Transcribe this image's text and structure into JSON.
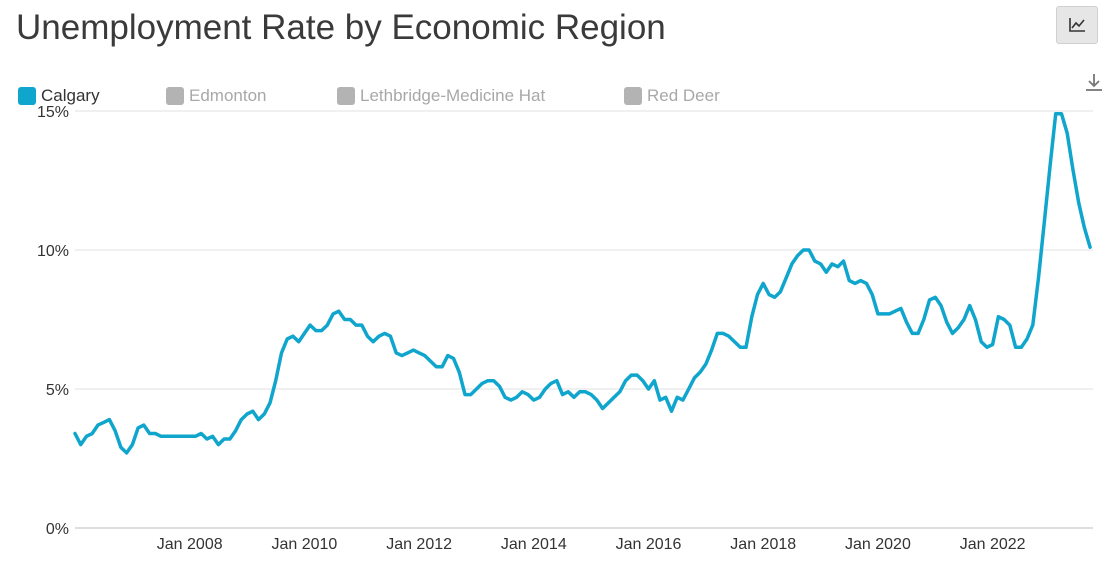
{
  "title": "Unemployment Rate by Economic Region",
  "toolbar": {
    "chart_type_icon": "line-chart-icon",
    "download_icon": "download-icon"
  },
  "legend": [
    {
      "label": "Calgary",
      "active": true,
      "color": "#0fa5cd"
    },
    {
      "label": "Edmonton",
      "active": false,
      "color": "#b3b3b3"
    },
    {
      "label": "Lethbridge-Medicine Hat",
      "active": false,
      "color": "#b3b3b3"
    },
    {
      "label": "Red Deer",
      "active": false,
      "color": "#b3b3b3"
    }
  ],
  "colors": {
    "series": "#0fa5cd",
    "inactive": "#b3b3b3",
    "grid": "#e0e0e0",
    "axis_text": "#333333"
  },
  "chart_data": {
    "type": "line",
    "title": "Unemployment Rate by Economic Region",
    "xlabel": "",
    "ylabel": "",
    "ylim": [
      0,
      15
    ],
    "yticks": [
      0,
      5,
      10,
      15
    ],
    "ytick_labels": [
      "0%",
      "5%",
      "10%",
      "15%"
    ],
    "xlim": [
      2006.0,
      2023.75
    ],
    "xticks": [
      2008,
      2010,
      2012,
      2014,
      2016,
      2018,
      2020,
      2022
    ],
    "xtick_labels": [
      "Jan 2008",
      "Jan 2010",
      "Jan 2012",
      "Jan 2014",
      "Jan 2016",
      "Jan 2018",
      "Jan 2020",
      "Jan 2022"
    ],
    "grid": "horizontal",
    "legend_position": "top-left",
    "series": [
      {
        "name": "Calgary",
        "points": [
          [
            2006.0,
            3.4
          ],
          [
            2006.1,
            3.0
          ],
          [
            2006.2,
            3.3
          ],
          [
            2006.3,
            3.4
          ],
          [
            2006.4,
            3.7
          ],
          [
            2006.5,
            3.8
          ],
          [
            2006.6,
            3.9
          ],
          [
            2006.7,
            3.5
          ],
          [
            2006.8,
            2.9
          ],
          [
            2006.9,
            2.7
          ],
          [
            2007.0,
            3.0
          ],
          [
            2007.1,
            3.6
          ],
          [
            2007.2,
            3.7
          ],
          [
            2007.3,
            3.4
          ],
          [
            2007.4,
            3.4
          ],
          [
            2007.5,
            3.3
          ],
          [
            2007.6,
            3.3
          ],
          [
            2007.8,
            3.3
          ],
          [
            2008.0,
            3.3
          ],
          [
            2008.1,
            3.3
          ],
          [
            2008.2,
            3.4
          ],
          [
            2008.3,
            3.2
          ],
          [
            2008.4,
            3.3
          ],
          [
            2008.5,
            3.0
          ],
          [
            2008.6,
            3.2
          ],
          [
            2008.7,
            3.2
          ],
          [
            2008.8,
            3.5
          ],
          [
            2008.9,
            3.9
          ],
          [
            2009.0,
            4.1
          ],
          [
            2009.1,
            4.2
          ],
          [
            2009.2,
            3.9
          ],
          [
            2009.3,
            4.1
          ],
          [
            2009.4,
            4.5
          ],
          [
            2009.5,
            5.3
          ],
          [
            2009.6,
            6.3
          ],
          [
            2009.7,
            6.8
          ],
          [
            2009.8,
            6.9
          ],
          [
            2009.9,
            6.7
          ],
          [
            2010.0,
            7.0
          ],
          [
            2010.1,
            7.3
          ],
          [
            2010.2,
            7.1
          ],
          [
            2010.3,
            7.1
          ],
          [
            2010.4,
            7.3
          ],
          [
            2010.5,
            7.7
          ],
          [
            2010.6,
            7.8
          ],
          [
            2010.7,
            7.5
          ],
          [
            2010.8,
            7.5
          ],
          [
            2010.9,
            7.3
          ],
          [
            2011.0,
            7.3
          ],
          [
            2011.1,
            6.9
          ],
          [
            2011.2,
            6.7
          ],
          [
            2011.3,
            6.9
          ],
          [
            2011.4,
            7.0
          ],
          [
            2011.5,
            6.9
          ],
          [
            2011.6,
            6.3
          ],
          [
            2011.7,
            6.2
          ],
          [
            2011.8,
            6.3
          ],
          [
            2011.9,
            6.4
          ],
          [
            2012.0,
            6.3
          ],
          [
            2012.1,
            6.2
          ],
          [
            2012.2,
            6.0
          ],
          [
            2012.3,
            5.8
          ],
          [
            2012.4,
            5.8
          ],
          [
            2012.5,
            6.2
          ],
          [
            2012.6,
            6.1
          ],
          [
            2012.7,
            5.6
          ],
          [
            2012.8,
            4.8
          ],
          [
            2012.9,
            4.8
          ],
          [
            2013.0,
            5.0
          ],
          [
            2013.1,
            5.2
          ],
          [
            2013.2,
            5.3
          ],
          [
            2013.3,
            5.3
          ],
          [
            2013.4,
            5.1
          ],
          [
            2013.5,
            4.7
          ],
          [
            2013.6,
            4.6
          ],
          [
            2013.7,
            4.7
          ],
          [
            2013.8,
            4.9
          ],
          [
            2013.9,
            4.8
          ],
          [
            2014.0,
            4.6
          ],
          [
            2014.1,
            4.7
          ],
          [
            2014.2,
            5.0
          ],
          [
            2014.3,
            5.2
          ],
          [
            2014.4,
            5.3
          ],
          [
            2014.5,
            4.8
          ],
          [
            2014.6,
            4.9
          ],
          [
            2014.7,
            4.7
          ],
          [
            2014.8,
            4.9
          ],
          [
            2014.9,
            4.9
          ],
          [
            2015.0,
            4.8
          ],
          [
            2015.1,
            4.6
          ],
          [
            2015.2,
            4.3
          ],
          [
            2015.3,
            4.5
          ],
          [
            2015.4,
            4.7
          ],
          [
            2015.5,
            4.9
          ],
          [
            2015.6,
            5.3
          ],
          [
            2015.7,
            5.5
          ],
          [
            2015.8,
            5.5
          ],
          [
            2015.9,
            5.3
          ],
          [
            2016.0,
            5.0
          ],
          [
            2016.1,
            5.3
          ],
          [
            2016.2,
            4.6
          ],
          [
            2016.3,
            4.7
          ],
          [
            2016.4,
            4.2
          ],
          [
            2016.5,
            4.7
          ],
          [
            2016.6,
            4.6
          ],
          [
            2016.7,
            5.0
          ],
          [
            2016.8,
            5.4
          ],
          [
            2016.9,
            5.6
          ],
          [
            2017.0,
            5.9
          ],
          [
            2017.1,
            6.4
          ],
          [
            2017.2,
            7.0
          ],
          [
            2017.3,
            7.0
          ],
          [
            2017.4,
            6.9
          ],
          [
            2017.5,
            6.7
          ],
          [
            2017.6,
            6.5
          ],
          [
            2017.7,
            6.5
          ],
          [
            2017.8,
            7.6
          ],
          [
            2017.9,
            8.4
          ],
          [
            2018.0,
            8.8
          ],
          [
            2018.1,
            8.4
          ],
          [
            2018.2,
            8.3
          ],
          [
            2018.3,
            8.5
          ],
          [
            2018.4,
            9.0
          ],
          [
            2018.5,
            9.5
          ],
          [
            2018.6,
            9.8
          ],
          [
            2018.7,
            10.0
          ],
          [
            2018.8,
            10.0
          ],
          [
            2018.9,
            9.6
          ],
          [
            2019.0,
            9.5
          ],
          [
            2019.1,
            9.2
          ],
          [
            2019.2,
            9.5
          ],
          [
            2019.3,
            9.4
          ],
          [
            2019.4,
            9.6
          ],
          [
            2019.5,
            8.9
          ],
          [
            2019.6,
            8.8
          ],
          [
            2019.7,
            8.9
          ],
          [
            2019.8,
            8.8
          ],
          [
            2019.9,
            8.4
          ],
          [
            2020.0,
            7.7
          ],
          [
            2020.1,
            7.7
          ],
          [
            2020.2,
            7.7
          ],
          [
            2020.3,
            7.8
          ],
          [
            2020.4,
            7.9
          ],
          [
            2020.5,
            7.4
          ],
          [
            2020.6,
            7.0
          ],
          [
            2020.7,
            7.0
          ],
          [
            2020.8,
            7.5
          ],
          [
            2020.9,
            8.2
          ],
          [
            2021.0,
            8.3
          ],
          [
            2021.1,
            8.0
          ],
          [
            2021.2,
            7.4
          ],
          [
            2021.3,
            7.0
          ],
          [
            2021.4,
            7.2
          ],
          [
            2021.5,
            7.5
          ],
          [
            2021.6,
            8.0
          ],
          [
            2021.7,
            7.5
          ],
          [
            2021.8,
            6.7
          ],
          [
            2021.9,
            6.5
          ],
          [
            2022.0,
            6.6
          ],
          [
            2022.1,
            7.6
          ],
          [
            2022.2,
            7.5
          ],
          [
            2022.3,
            7.3
          ],
          [
            2022.4,
            6.5
          ],
          [
            2022.5,
            6.5
          ],
          [
            2022.6,
            6.8
          ],
          [
            2022.7,
            7.3
          ],
          [
            2022.8,
            9.0
          ],
          [
            2022.9,
            11.0
          ],
          [
            2023.0,
            13.0
          ],
          [
            2023.1,
            14.9
          ],
          [
            2023.2,
            14.9
          ],
          [
            2023.3,
            14.2
          ],
          [
            2023.4,
            12.9
          ],
          [
            2023.5,
            11.7
          ],
          [
            2023.6,
            10.8
          ],
          [
            2023.7,
            10.1
          ]
        ]
      }
    ]
  }
}
